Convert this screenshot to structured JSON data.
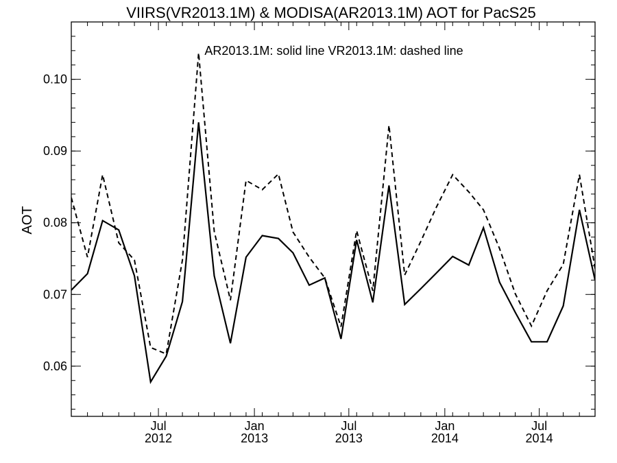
{
  "chart_data": {
    "type": "line",
    "title": "VIIRS(VR2013.1M) & MODISA(AR2013.1M)  AOT for PacS25",
    "annotation": "AR2013.1M: solid line   VR2013.1M: dashed line",
    "xlabel": "",
    "ylabel": "AOT",
    "xlim": [
      "2012-01-16",
      "2014-10-16"
    ],
    "ylim": [
      0.053,
      0.108
    ],
    "yticks": [
      {
        "value": 0.06,
        "label": "0.06"
      },
      {
        "value": 0.07,
        "label": "0.07"
      },
      {
        "value": 0.08,
        "label": "0.08"
      },
      {
        "value": 0.09,
        "label": "0.09"
      },
      {
        "value": 0.1,
        "label": "0.10"
      }
    ],
    "xticks": [
      {
        "date": "2012-07-01",
        "month": "Jul",
        "year": "2012"
      },
      {
        "date": "2013-01-01",
        "month": "Jan",
        "year": "2013"
      },
      {
        "date": "2013-07-01",
        "month": "Jul",
        "year": "2013"
      },
      {
        "date": "2014-01-01",
        "month": "Jan",
        "year": "2014"
      },
      {
        "date": "2014-07-01",
        "month": "Jul",
        "year": "2014"
      }
    ],
    "x": [
      "2012-01-16",
      "2012-02-16",
      "2012-03-16",
      "2012-04-16",
      "2012-05-16",
      "2012-06-16",
      "2012-07-16",
      "2012-08-16",
      "2012-09-16",
      "2012-10-16",
      "2012-11-16",
      "2012-12-16",
      "2013-01-16",
      "2013-02-16",
      "2013-03-16",
      "2013-04-16",
      "2013-05-16",
      "2013-06-16",
      "2013-07-16",
      "2013-08-16",
      "2013-09-16",
      "2013-10-16",
      "2013-11-16",
      "2013-12-16",
      "2014-01-16",
      "2014-02-16",
      "2014-03-16",
      "2014-04-16",
      "2014-05-16",
      "2014-06-16",
      "2014-07-16",
      "2014-08-16",
      "2014-09-16",
      "2014-10-16"
    ],
    "series": [
      {
        "name": "AR2013.1M",
        "style": "solid",
        "values": [
          0.0706,
          0.0729,
          0.0803,
          0.079,
          0.0726,
          0.0578,
          0.0614,
          0.069,
          0.094,
          0.0726,
          0.0632,
          0.0752,
          0.0782,
          0.0778,
          0.0758,
          0.0713,
          0.0723,
          0.0638,
          0.0776,
          0.0689,
          0.0852,
          0.0686,
          0.0708,
          0.073,
          0.0753,
          0.0741,
          0.0793,
          0.0717,
          0.0675,
          0.0634,
          0.0634,
          0.0684,
          0.0818,
          0.072
        ]
      },
      {
        "name": "VR2013.1M",
        "style": "dashed",
        "values": [
          0.0835,
          0.0752,
          0.0867,
          0.0772,
          0.0748,
          0.0626,
          0.0617,
          0.0748,
          0.1037,
          0.0788,
          0.0692,
          0.0859,
          0.0846,
          0.0868,
          0.0787,
          0.0752,
          0.0723,
          0.0655,
          0.0789,
          0.0705,
          0.0936,
          0.0727,
          0.0774,
          0.0822,
          0.0867,
          0.0843,
          0.0818,
          0.0764,
          0.0701,
          0.0656,
          0.0705,
          0.0742,
          0.0867,
          0.0736
        ]
      }
    ],
    "grid": false,
    "line_color": "#000000"
  }
}
